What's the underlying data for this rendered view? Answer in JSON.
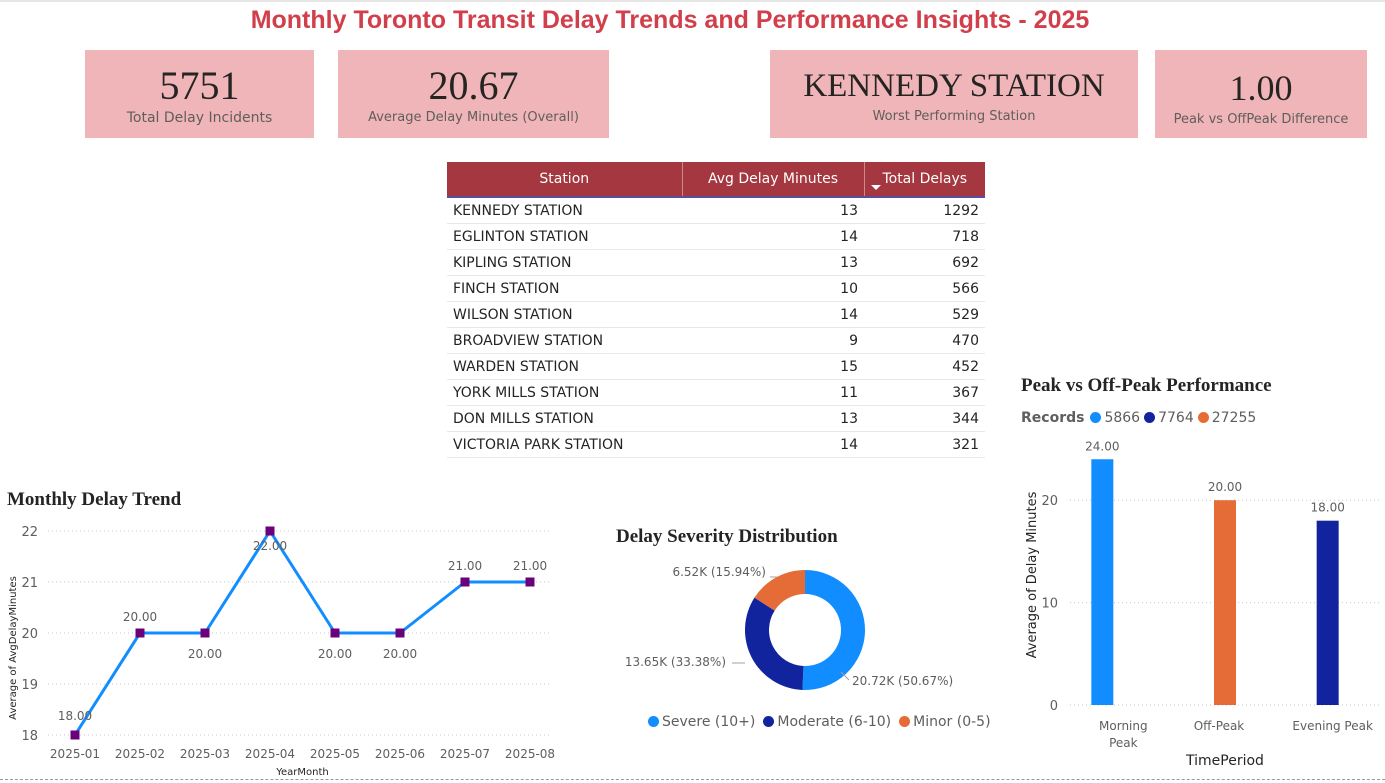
{
  "title": "Monthly Toronto Transit Delay Trends and Performance Insights - 2025",
  "kpis": [
    {
      "value": "5751",
      "label": "Total Delay Incidents"
    },
    {
      "value": "20.67",
      "label": "Average Delay Minutes (Overall)"
    },
    {
      "value": "KENNEDY STATION",
      "label": "Worst Performing Station"
    },
    {
      "value": "1.00",
      "label": "Peak vs OffPeak Difference"
    }
  ],
  "table": {
    "headers": [
      "Station",
      "Avg Delay Minutes",
      "Total Delays"
    ],
    "rows": [
      [
        "KENNEDY STATION",
        "13",
        "1292"
      ],
      [
        "EGLINTON STATION",
        "14",
        "718"
      ],
      [
        "KIPLING STATION",
        "13",
        "692"
      ],
      [
        "FINCH STATION",
        "10",
        "566"
      ],
      [
        "WILSON STATION",
        "14",
        "529"
      ],
      [
        "BROADVIEW STATION",
        "9",
        "470"
      ],
      [
        "WARDEN STATION",
        "15",
        "452"
      ],
      [
        "YORK MILLS STATION",
        "11",
        "367"
      ],
      [
        "DON MILLS STATION",
        "13",
        "344"
      ],
      [
        "VICTORIA PARK STATION",
        "14",
        "321"
      ]
    ]
  },
  "chart_data": [
    {
      "type": "line",
      "title": "Monthly Delay Trend",
      "xlabel": "YearMonth",
      "ylabel": "Average of AvgDelayMinutes",
      "x": [
        "2025-01",
        "2025-02",
        "2025-03",
        "2025-04",
        "2025-05",
        "2025-06",
        "2025-07",
        "2025-08"
      ],
      "values": [
        18,
        20,
        20,
        22,
        20,
        20,
        21,
        21
      ],
      "data_labels": [
        "18.00",
        "20.00",
        "20.00",
        "22.00",
        "20.00",
        "20.00",
        "21.00",
        "21.00"
      ],
      "ylim": [
        18,
        22
      ],
      "yticks": [
        "18",
        "19",
        "20",
        "21",
        "22"
      ],
      "line_color": "#118dff",
      "marker_color": "#6b007b",
      "grid": true
    },
    {
      "type": "pie",
      "title": "Delay Severity Distribution",
      "donut": true,
      "categories": [
        "Severe (10+)",
        "Moderate (6-10)",
        "Minor (0-5)"
      ],
      "values": [
        20720,
        13650,
        6520
      ],
      "percents": [
        50.67,
        33.38,
        15.94
      ],
      "data_labels": [
        "20.72K (50.67%)",
        "13.65K (33.38%)",
        "6.52K (15.94%)"
      ],
      "colors": [
        "#118dff",
        "#12239e",
        "#e66c37"
      ],
      "legend_position": "bottom"
    },
    {
      "type": "bar",
      "title": "Peak vs Off-Peak Performance",
      "legend_title": "Records",
      "series": [
        {
          "name": "5866",
          "color": "#118dff",
          "values": [
            24,
            null,
            null
          ]
        },
        {
          "name": "7764",
          "color": "#12239e",
          "values": [
            null,
            null,
            18
          ]
        },
        {
          "name": "27255",
          "color": "#e66c37",
          "values": [
            null,
            20,
            null
          ]
        }
      ],
      "categories": [
        "Morning Peak",
        "Off-Peak",
        "Evening Peak"
      ],
      "data_labels": [
        "24.00",
        "20.00",
        "18.00"
      ],
      "xlabel": "TimePeriod",
      "ylabel": "Average of Delay Minutes",
      "ylim": [
        0,
        24
      ],
      "yticks": [
        "0",
        "10",
        "20"
      ],
      "legend_position": "top-left",
      "grid": true
    }
  ]
}
